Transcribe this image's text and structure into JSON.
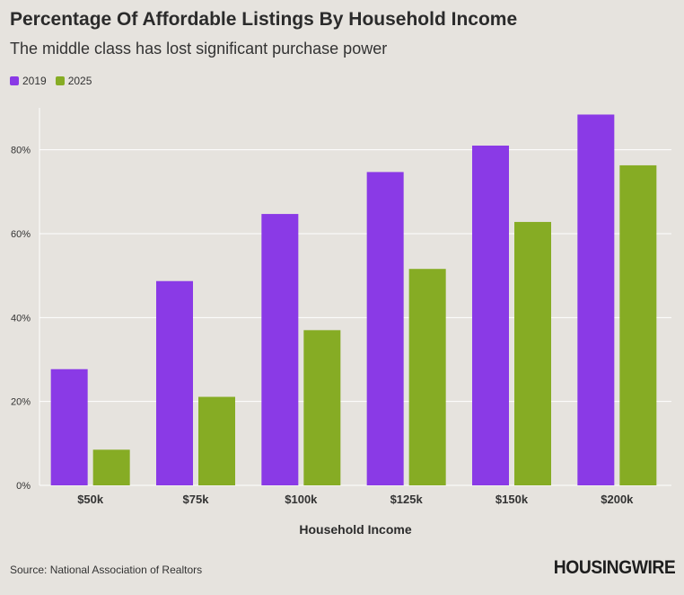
{
  "chart_data": {
    "type": "bar",
    "title": "Percentage Of Affordable Listings By Household Income",
    "subtitle": "The middle class has lost significant purchase power",
    "xlabel": "Household Income",
    "ylabel": "",
    "categories": [
      "$50k",
      "$75k",
      "$100k",
      "$125k",
      "$150k",
      "$200k"
    ],
    "series": [
      {
        "name": "2019",
        "color": "#8a3ae6",
        "values": [
          27.7,
          48.7,
          64.7,
          74.7,
          81.0,
          88.4
        ]
      },
      {
        "name": "2025",
        "color": "#86ac24",
        "values": [
          8.5,
          21.1,
          37.0,
          51.6,
          62.8,
          76.3
        ]
      }
    ],
    "ylim": [
      0,
      90
    ],
    "yticks": [
      0,
      20,
      40,
      60,
      80
    ],
    "ytick_suffix": "%",
    "grid": true,
    "legend": "top-left"
  },
  "source": "Source: National Association of Realtors",
  "logo": "HOUSINGWIRE"
}
